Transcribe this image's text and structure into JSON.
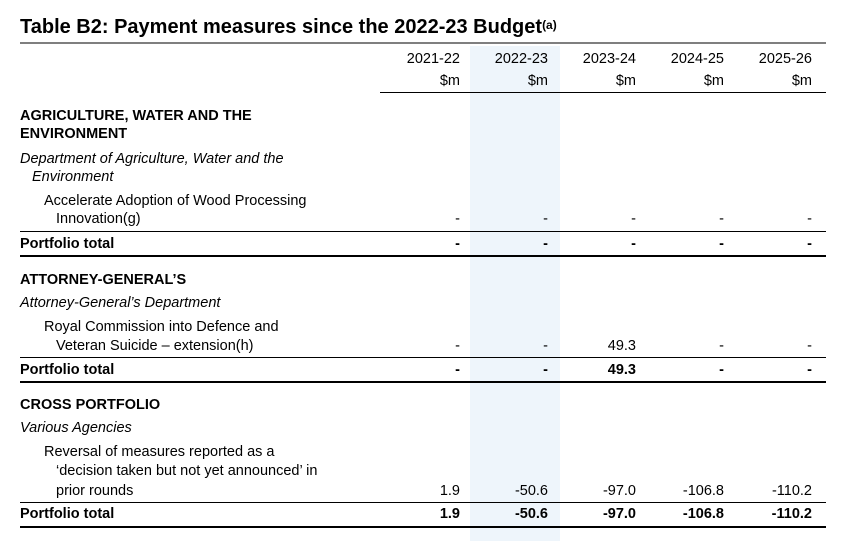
{
  "table": {
    "title": "Table B2: Payment measures since the 2022-23 Budget",
    "title_sup": "(a)",
    "columns": [
      {
        "year": "2021-22",
        "unit": "$m"
      },
      {
        "year": "2022-23",
        "unit": "$m"
      },
      {
        "year": "2023-24",
        "unit": "$m"
      },
      {
        "year": "2024-25",
        "unit": "$m"
      },
      {
        "year": "2025-26",
        "unit": "$m"
      }
    ],
    "sections": [
      {
        "heading_line1": "AGRICULTURE, WATER AND THE",
        "heading_line2": "ENVIRONMENT",
        "dept_line1": "Department of Agriculture, Water and the",
        "dept_line2": "Environment",
        "item_line1": "Accelerate Adoption of Wood Processing",
        "item_line2": "Innovation(g)",
        "item_values": [
          "-",
          "-",
          "-",
          "-",
          "-"
        ],
        "total_label": "Portfolio total",
        "total_values": [
          "-",
          "-",
          "-",
          "-",
          "-"
        ]
      },
      {
        "heading_line1": "ATTORNEY-GENERAL’S",
        "dept_line1": "Attorney-General’s Department",
        "item_line1": "Royal Commission into Defence and",
        "item_line2": "Veteran Suicide – extension(h)",
        "item_values": [
          "-",
          "-",
          "49.3",
          "-",
          "-"
        ],
        "total_label": "Portfolio total",
        "total_values": [
          "-",
          "-",
          "49.3",
          "-",
          "-"
        ]
      },
      {
        "heading_line1": "CROSS PORTFOLIO",
        "dept_line1": "Various Agencies",
        "item_line1": "Reversal of measures reported as a",
        "item_line2": "‘decision taken but not yet announced’ in",
        "item_line3": "prior rounds",
        "item_values": [
          "1.9",
          "-50.6",
          "-97.0",
          "-106.8",
          "-110.2"
        ],
        "total_label": "Portfolio total",
        "total_values": [
          "1.9",
          "-50.6",
          "-97.0",
          "-106.8",
          "-110.2"
        ]
      }
    ]
  }
}
